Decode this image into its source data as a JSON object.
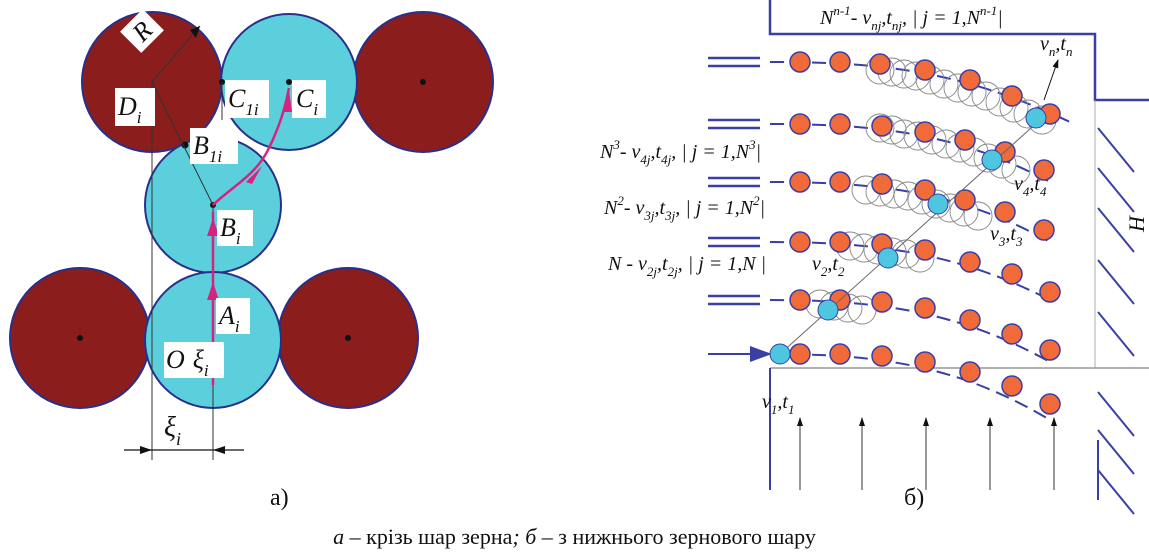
{
  "panel_a": {
    "label": "а)",
    "R": "R",
    "D": "D",
    "D_sub": "i",
    "C1": "C",
    "C1_sub": "1i",
    "C": "C",
    "C_sub": "i",
    "B1": "B",
    "B1_sub": "1i",
    "B": "B",
    "B_sub": "i",
    "A": "A",
    "A_sub": "i",
    "O": "O",
    "xi_inner": "ξ",
    "xi_inner_sub": "i",
    "xi_dim": "ξ",
    "xi_dim_sub": "i"
  },
  "panel_b": {
    "label": "б)",
    "H": "H",
    "formula_top": {
      "base": "N",
      "sup": "n-1",
      "text": "- v",
      "s1": "nj",
      "t": ",t",
      "s2": "nj",
      "rest": ", | j = 1,N",
      "sup2": "n-1",
      "end": "|"
    },
    "formula_N3": {
      "base": "N",
      "sup": "3",
      "text": "- v",
      "s1": "4j",
      "t": ",t",
      "s2": "4j",
      "rest": ", | j = 1,N",
      "sup2": "3",
      "end": "|"
    },
    "formula_N2": {
      "base": "N",
      "sup": "2",
      "text": "- v",
      "s1": "3j",
      "t": ",t",
      "s2": "3j",
      "rest": ", | j = 1,N",
      "sup2": "2",
      "end": "|"
    },
    "formula_N": {
      "base": "N",
      "text": " - v",
      "s1": "2j",
      "t": ",t",
      "s2": "2j",
      "rest": ", | j = 1,N |"
    },
    "vt1": {
      "v": "v",
      "vs": "1",
      "t": ",t",
      "ts": "1"
    },
    "vt2": {
      "v": "v",
      "vs": "2",
      "t": ",t",
      "ts": "2"
    },
    "vt3": {
      "v": "v",
      "vs": "3",
      "t": ",t",
      "ts": "3"
    },
    "vt4": {
      "v": "v",
      "vs": "4",
      "t": ",t",
      "ts": "4"
    },
    "vtn": {
      "v": "v",
      "vs": "n",
      "t": ",t",
      "ts": "n"
    }
  },
  "caption": {
    "a": "а",
    "a_text": " – крізь шар зерна",
    "sep": ";",
    "b": " б",
    "b_text": " – з нижнього зернового шару"
  },
  "colors": {
    "dark_red": "#8b1d1d",
    "cyan": "#5ccfdc",
    "orange": "#f06a3a",
    "blue": "#3a3fa6",
    "magenta": "#d6237f"
  }
}
